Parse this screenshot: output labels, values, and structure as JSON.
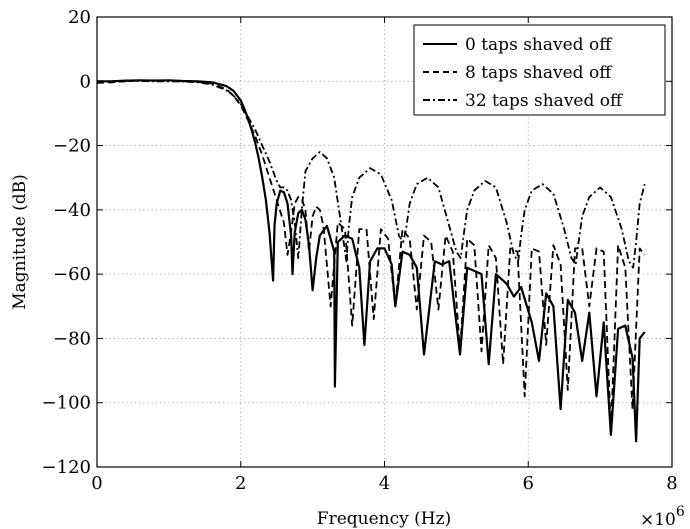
{
  "chart_data": {
    "type": "line",
    "xlabel": "Frequency (Hz)",
    "ylabel": "Magnitude (dB)",
    "x_multiplier_label": "×10",
    "x_multiplier_exp": "6",
    "xlim": [
      0,
      8000000
    ],
    "ylim": [
      -120,
      20
    ],
    "xticks": [
      0,
      2000000,
      4000000,
      6000000,
      8000000
    ],
    "xtick_labels": [
      "0",
      "2",
      "4",
      "6",
      "8"
    ],
    "yticks": [
      -120,
      -100,
      -80,
      -60,
      -40,
      -20,
      0,
      20
    ],
    "ytick_labels": [
      "−120",
      "−100",
      "−80",
      "−60",
      "−40",
      "−20",
      "0",
      "20"
    ],
    "grid": true,
    "legend_position": "top-right",
    "series": [
      {
        "name": "0 taps shaved off",
        "style": "solid",
        "x": [
          0,
          200000,
          400000,
          600000,
          800000,
          1000000,
          1200000,
          1400000,
          1600000,
          1800000,
          1900000,
          2000000,
          2050000,
          2100000,
          2150000,
          2200000,
          2250000,
          2300000,
          2350000,
          2400000,
          2450000,
          2470000,
          2500000,
          2550000,
          2600000,
          2650000,
          2700000,
          2720000,
          2750000,
          2800000,
          2850000,
          2900000,
          2950000,
          3000000,
          3050000,
          3100000,
          3200000,
          3300000,
          3310000,
          3350000,
          3450000,
          3550000,
          3650000,
          3720000,
          3800000,
          3900000,
          4000000,
          4100000,
          4150000,
          4250000,
          4350000,
          4450000,
          4550000,
          4700000,
          4800000,
          4900000,
          5050000,
          5150000,
          5250000,
          5350000,
          5450000,
          5550000,
          5700000,
          5800000,
          5900000,
          6050000,
          6150000,
          6250000,
          6350000,
          6450000,
          6550000,
          6650000,
          6750000,
          6850000,
          6950000,
          7050000,
          7150000,
          7250000,
          7350000,
          7450000,
          7500000,
          7550000,
          7620000
        ],
        "y": [
          0,
          0,
          0.2,
          0.3,
          0.2,
          0.3,
          0.1,
          0,
          -0.3,
          -1.5,
          -3,
          -6,
          -8.5,
          -11.5,
          -15,
          -19,
          -24,
          -30,
          -37,
          -47,
          -62,
          -45,
          -38,
          -34,
          -34.5,
          -38,
          -48,
          -60,
          -47,
          -41,
          -40,
          -43,
          -51,
          -65,
          -55,
          -48,
          -45,
          -53,
          -95,
          -50,
          -48,
          -49,
          -58,
          -82,
          -56,
          -52,
          -52,
          -57,
          -70,
          -53,
          -54,
          -58,
          -85,
          -56,
          -57,
          -56,
          -85,
          -58,
          -59,
          -60,
          -88,
          -60,
          -63,
          -67,
          -64,
          -75,
          -87,
          -66,
          -70,
          -102,
          -68,
          -72,
          -87,
          -72,
          -98,
          -75,
          -110,
          -77,
          -76,
          -86,
          -112,
          -80,
          -78
        ]
      },
      {
        "name": "8 taps shaved off",
        "style": "dashed",
        "x": [
          0,
          200000,
          400000,
          600000,
          800000,
          1000000,
          1200000,
          1400000,
          1600000,
          1800000,
          1900000,
          2000000,
          2100000,
          2200000,
          2300000,
          2400000,
          2500000,
          2600000,
          2650000,
          2700000,
          2750000,
          2800000,
          2850000,
          2900000,
          2950000,
          3000000,
          3050000,
          3100000,
          3150000,
          3250000,
          3350000,
          3450000,
          3550000,
          3650000,
          3750000,
          3850000,
          3950000,
          4050000,
          4150000,
          4250000,
          4350000,
          4450000,
          4550000,
          4650000,
          4750000,
          4850000,
          4950000,
          5050000,
          5150000,
          5250000,
          5350000,
          5450000,
          5550000,
          5650000,
          5750000,
          5850000,
          5950000,
          6050000,
          6150000,
          6250000,
          6350000,
          6450000,
          6550000,
          6650000,
          6750000,
          6850000,
          6950000,
          7050000,
          7150000,
          7250000,
          7350000,
          7450000,
          7550000,
          7620000
        ],
        "y": [
          -0.5,
          -0.3,
          0,
          0.2,
          0.3,
          0.2,
          0,
          -0.2,
          -0.7,
          -2.5,
          -4.5,
          -7.5,
          -12,
          -17,
          -23,
          -30,
          -37,
          -44,
          -54,
          -47,
          -38,
          -36,
          -36.5,
          -40,
          -53,
          -42,
          -39,
          -40,
          -45,
          -70,
          -44,
          -46,
          -76,
          -46,
          -46,
          -74,
          -46,
          -49,
          -70,
          -46,
          -49,
          -71,
          -48,
          -50,
          -71,
          -48,
          -53,
          -84,
          -49,
          -51,
          -84,
          -51,
          -55,
          -88,
          -52,
          -53,
          -98,
          -52,
          -53,
          -82,
          -51,
          -57,
          -96,
          -52,
          -52,
          -70,
          -52,
          -53,
          -109,
          -51,
          -58,
          -102,
          -52,
          -54
        ]
      },
      {
        "name": "32 taps shaved off",
        "style": "dashdot",
        "x": [
          0,
          200000,
          400000,
          600000,
          800000,
          1000000,
          1200000,
          1400000,
          1600000,
          1800000,
          1900000,
          2000000,
          2100000,
          2200000,
          2300000,
          2400000,
          2450000,
          2500000,
          2550000,
          2600000,
          2650000,
          2700000,
          2750000,
          2800000,
          2850000,
          2900000,
          3000000,
          3100000,
          3200000,
          3300000,
          3400000,
          3470000,
          3500000,
          3550000,
          3650000,
          3800000,
          3950000,
          4100000,
          4200000,
          4260000,
          4300000,
          4350000,
          4450000,
          4600000,
          4750000,
          4900000,
          5000000,
          5060000,
          5100000,
          5150000,
          5250000,
          5400000,
          5550000,
          5700000,
          5800000,
          5860000,
          5900000,
          5950000,
          6050000,
          6200000,
          6350000,
          6500000,
          6600000,
          6660000,
          6700000,
          6750000,
          6850000,
          7000000,
          7150000,
          7300000,
          7400000,
          7460000,
          7500000,
          7550000,
          7620000
        ],
        "y": [
          0,
          0,
          0.1,
          0.1,
          0,
          0,
          -0.1,
          -0.3,
          -1,
          -2.8,
          -4.5,
          -7,
          -11,
          -15,
          -20,
          -25,
          -28,
          -31,
          -33,
          -33,
          -34,
          -37,
          -44,
          -55,
          -40,
          -28,
          -24,
          -22,
          -24,
          -30,
          -45,
          -56,
          -46,
          -36,
          -30,
          -27,
          -29,
          -37,
          -48,
          -50,
          -46,
          -38,
          -32,
          -30,
          -33,
          -45,
          -53,
          -55,
          -48,
          -40,
          -34,
          -31,
          -33,
          -44,
          -54,
          -56,
          -48,
          -40,
          -34,
          -32,
          -35,
          -46,
          -55,
          -57,
          -50,
          -42,
          -36,
          -33,
          -36,
          -46,
          -56,
          -58,
          -50,
          -38,
          -32
        ]
      }
    ]
  }
}
